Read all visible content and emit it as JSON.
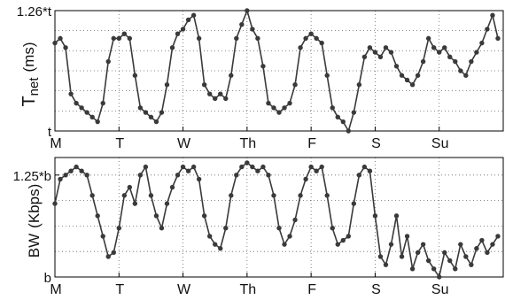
{
  "chart_data": [
    {
      "type": "line",
      "ylabel": "T",
      "ylabel_sub": "net",
      "ylabel_unit": "(ms)",
      "color": "#3a3a3a",
      "x": [
        0,
        2,
        4,
        6,
        8,
        10,
        12,
        14,
        16,
        18,
        20,
        22,
        24,
        26,
        28,
        30,
        32,
        34,
        36,
        38,
        40,
        42,
        44,
        46,
        48,
        50,
        52,
        54,
        56,
        58,
        60,
        62,
        64,
        66,
        68,
        70,
        72,
        74,
        76,
        78,
        80,
        82,
        84,
        86,
        88,
        90,
        92,
        94,
        96,
        98,
        100,
        102,
        104,
        106,
        108,
        110,
        112,
        114,
        116,
        118,
        120,
        122,
        124,
        126,
        128,
        130,
        132,
        134,
        136,
        138,
        140,
        142,
        144,
        146,
        148,
        150,
        152,
        154,
        156,
        158,
        160,
        162,
        164,
        166
      ],
      "values": [
        1.19,
        1.2,
        1.18,
        1.08,
        1.06,
        1.05,
        1.04,
        1.03,
        1.02,
        1.06,
        1.15,
        1.2,
        1.2,
        1.21,
        1.2,
        1.12,
        1.05,
        1.04,
        1.03,
        1.02,
        1.04,
        1.1,
        1.18,
        1.21,
        1.22,
        1.24,
        1.25,
        1.2,
        1.1,
        1.08,
        1.07,
        1.08,
        1.07,
        1.12,
        1.2,
        1.23,
        1.26,
        1.22,
        1.2,
        1.14,
        1.06,
        1.05,
        1.04,
        1.05,
        1.06,
        1.1,
        1.18,
        1.2,
        1.21,
        1.2,
        1.19,
        1.12,
        1.05,
        1.03,
        1.02,
        1.0,
        1.04,
        1.1,
        1.16,
        1.18,
        1.17,
        1.16,
        1.18,
        1.17,
        1.14,
        1.12,
        1.11,
        1.1,
        1.12,
        1.15,
        1.2,
        1.18,
        1.17,
        1.18,
        1.16,
        1.15,
        1.13,
        1.12,
        1.15,
        1.17,
        1.19,
        1.22,
        1.25,
        1.2
      ],
      "xlim": [
        0,
        168
      ],
      "xticks": [
        {
          "value": 0,
          "label": "M"
        },
        {
          "value": 24,
          "label": "T"
        },
        {
          "value": 48,
          "label": "W"
        },
        {
          "value": 72,
          "label": "Th"
        },
        {
          "value": 96,
          "label": "F"
        },
        {
          "value": 120,
          "label": "S"
        },
        {
          "value": 144,
          "label": "Su"
        }
      ],
      "ylim": [
        1,
        1.26
      ],
      "yticks": [
        {
          "value": 1,
          "label": "t"
        },
        {
          "value": 1.26,
          "label": "1.26*t"
        }
      ],
      "ygrid": [
        1.043,
        1.087,
        1.13,
        1.173,
        1.217
      ],
      "grid": true
    },
    {
      "type": "line",
      "ylabel": "BW",
      "ylabel_unit": "(Kbps)",
      "color": "#3a3a3a",
      "x": [
        0,
        2,
        4,
        6,
        8,
        10,
        12,
        14,
        16,
        18,
        20,
        22,
        24,
        26,
        28,
        30,
        32,
        34,
        36,
        38,
        40,
        42,
        44,
        46,
        48,
        50,
        52,
        54,
        56,
        58,
        60,
        62,
        64,
        66,
        68,
        70,
        72,
        74,
        76,
        78,
        80,
        82,
        84,
        86,
        88,
        90,
        92,
        94,
        96,
        98,
        100,
        102,
        104,
        106,
        108,
        110,
        112,
        114,
        116,
        118,
        120,
        122,
        124,
        126,
        128,
        130,
        132,
        134,
        136,
        138,
        140,
        142,
        144,
        146,
        148,
        150,
        152,
        154,
        156,
        158,
        160,
        162,
        164,
        166
      ],
      "values": [
        1.18,
        1.24,
        1.25,
        1.26,
        1.27,
        1.26,
        1.25,
        1.2,
        1.15,
        1.1,
        1.05,
        1.06,
        1.12,
        1.2,
        1.22,
        1.18,
        1.25,
        1.27,
        1.2,
        1.15,
        1.12,
        1.18,
        1.22,
        1.25,
        1.27,
        1.26,
        1.27,
        1.24,
        1.15,
        1.1,
        1.08,
        1.07,
        1.12,
        1.2,
        1.25,
        1.27,
        1.28,
        1.27,
        1.26,
        1.27,
        1.25,
        1.2,
        1.12,
        1.08,
        1.1,
        1.14,
        1.2,
        1.24,
        1.27,
        1.26,
        1.27,
        1.2,
        1.12,
        1.08,
        1.09,
        1.1,
        1.18,
        1.25,
        1.27,
        1.26,
        1.15,
        1.05,
        1.03,
        1.08,
        1.15,
        1.05,
        1.1,
        1.02,
        1.06,
        1.08,
        1.04,
        1.02,
        1.0,
        1.06,
        1.04,
        1.02,
        1.08,
        1.05,
        1.03,
        1.07,
        1.09,
        1.06,
        1.08,
        1.1
      ],
      "xlim": [
        0,
        168
      ],
      "xticks": [
        {
          "value": 0,
          "label": "M"
        },
        {
          "value": 24,
          "label": "T"
        },
        {
          "value": 48,
          "label": "W"
        },
        {
          "value": 72,
          "label": "Th"
        },
        {
          "value": 96,
          "label": "F"
        },
        {
          "value": 120,
          "label": "S"
        },
        {
          "value": 144,
          "label": "Su"
        }
      ],
      "ylim": [
        1,
        1.293
      ],
      "yticks": [
        {
          "value": 1,
          "label": "b"
        },
        {
          "value": 1.25,
          "label": "1.25*b"
        }
      ],
      "ygrid": [
        1.0625,
        1.125,
        1.1875
      ],
      "grid": true
    }
  ]
}
